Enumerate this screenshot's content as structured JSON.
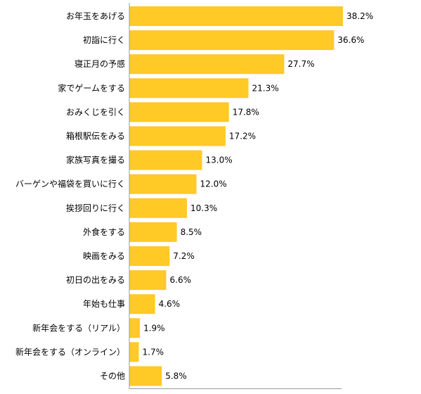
{
  "chart_data": {
    "type": "bar",
    "orientation": "horizontal",
    "categories": [
      "お年玉をあげる",
      "初詣に行く",
      "寝正月の予感",
      "家でゲームをする",
      "おみくじを引く",
      "箱根駅伝をみる",
      "家族写真を撮る",
      "バーゲンや福袋を買いに行く",
      "挨拶回りに行く",
      "外食をする",
      "映画をみる",
      "初日の出をみる",
      "年始も仕事",
      "新年会をする（リアル）",
      "新年会をする（オンライン）",
      "その他"
    ],
    "values": [
      38.2,
      36.6,
      27.7,
      21.3,
      17.8,
      17.2,
      13.0,
      12.0,
      10.3,
      8.5,
      7.2,
      6.6,
      4.6,
      1.9,
      1.7,
      5.8
    ],
    "value_labels": [
      "38.2%",
      "36.6%",
      "27.7%",
      "21.3%",
      "17.8%",
      "17.2%",
      "13.0%",
      "12.0%",
      "10.3%",
      "8.5%",
      "7.2%",
      "6.6%",
      "4.6%",
      "1.9%",
      "1.7%",
      "5.8%"
    ],
    "title": "",
    "xlabel": "",
    "ylabel": "",
    "xlim": [
      0,
      38.2
    ],
    "grid": false,
    "legend": "none",
    "bar_color": "#FFC926",
    "axis_color": "#999999",
    "text_color": "#000000"
  }
}
